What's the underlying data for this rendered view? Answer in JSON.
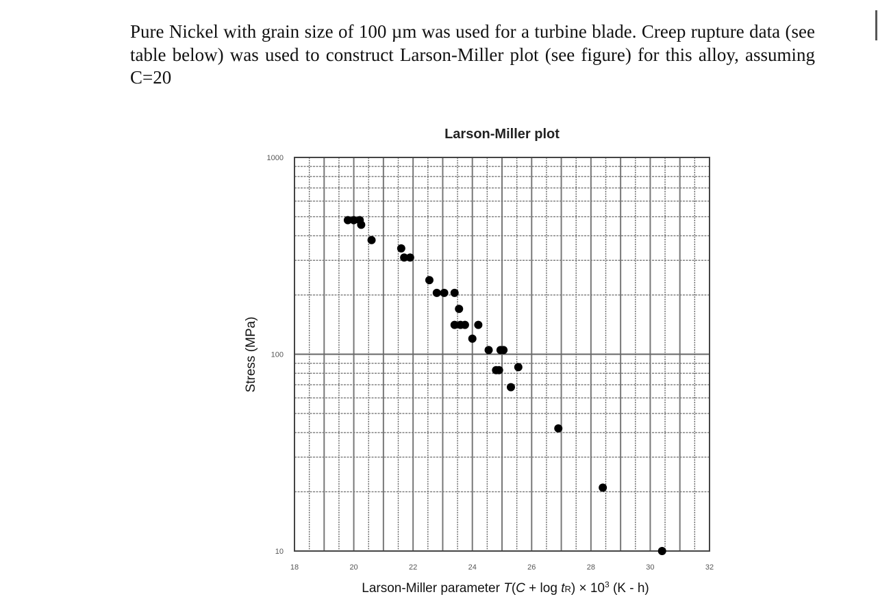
{
  "problem": {
    "text": "Pure Nickel with grain size of 100 µm was used for a turbine blade. Creep rupture data (see table below) was used to construct Larson-Miller plot (see figure) for this alloy, assuming C=20"
  },
  "chart_data": {
    "type": "scatter",
    "title": "Larson-Miller plot",
    "xlabel": "Larson-Miller parameter T(C + log tR) × 10³ (K - h)",
    "ylabel": "Stress (MPa)",
    "xlim": [
      18,
      32
    ],
    "ylim": [
      10,
      1000
    ],
    "yscale": "log",
    "grid": true,
    "x_ticks": [
      18,
      20,
      22,
      24,
      26,
      28,
      30,
      32
    ],
    "y_ticks": [
      10,
      100,
      1000
    ],
    "legend": null,
    "points": [
      {
        "x": 19.8,
        "y": 480
      },
      {
        "x": 20.0,
        "y": 480
      },
      {
        "x": 20.2,
        "y": 480
      },
      {
        "x": 20.25,
        "y": 455
      },
      {
        "x": 20.6,
        "y": 380
      },
      {
        "x": 21.6,
        "y": 345
      },
      {
        "x": 21.7,
        "y": 310
      },
      {
        "x": 21.9,
        "y": 310
      },
      {
        "x": 22.55,
        "y": 238
      },
      {
        "x": 22.8,
        "y": 205
      },
      {
        "x": 23.05,
        "y": 205
      },
      {
        "x": 23.4,
        "y": 205
      },
      {
        "x": 23.55,
        "y": 170
      },
      {
        "x": 23.4,
        "y": 141
      },
      {
        "x": 23.6,
        "y": 141
      },
      {
        "x": 23.75,
        "y": 141
      },
      {
        "x": 24.2,
        "y": 141
      },
      {
        "x": 24.0,
        "y": 120
      },
      {
        "x": 24.55,
        "y": 105
      },
      {
        "x": 24.95,
        "y": 105
      },
      {
        "x": 25.05,
        "y": 105
      },
      {
        "x": 24.8,
        "y": 83
      },
      {
        "x": 24.9,
        "y": 83
      },
      {
        "x": 25.55,
        "y": 86
      },
      {
        "x": 25.3,
        "y": 68
      },
      {
        "x": 26.9,
        "y": 42
      },
      {
        "x": 28.4,
        "y": 21
      },
      {
        "x": 30.4,
        "y": 10
      }
    ]
  }
}
